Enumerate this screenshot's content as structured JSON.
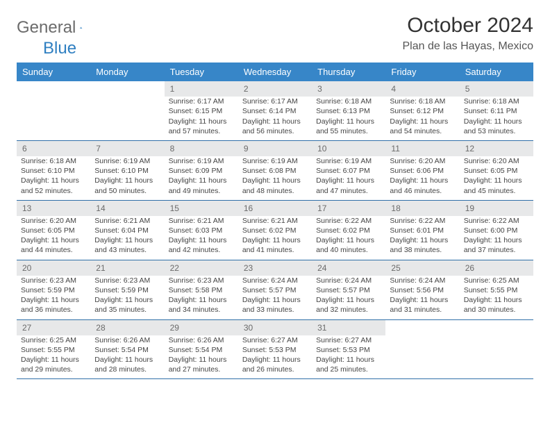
{
  "logo": {
    "word1": "General",
    "word2": "Blue"
  },
  "title": "October 2024",
  "subtitle": "Plan de las Hayas, Mexico",
  "colors": {
    "header_bg": "#3786c8",
    "header_fg": "#ffffff",
    "daynum_bg": "#e7e8e9",
    "daynum_fg": "#6a6a6a",
    "row_divider": "#2f6fa8",
    "logo_gray": "#6b6b6b",
    "logo_blue": "#2f7fc1"
  },
  "day_headers": [
    "Sunday",
    "Monday",
    "Tuesday",
    "Wednesday",
    "Thursday",
    "Friday",
    "Saturday"
  ],
  "weeks": [
    {
      "nums": [
        "",
        "",
        "1",
        "2",
        "3",
        "4",
        "5"
      ],
      "cells": [
        {
          "empty": true
        },
        {
          "empty": true
        },
        {
          "sunrise": "Sunrise: 6:17 AM",
          "sunset": "Sunset: 6:15 PM",
          "dl1": "Daylight: 11 hours",
          "dl2": "and 57 minutes."
        },
        {
          "sunrise": "Sunrise: 6:17 AM",
          "sunset": "Sunset: 6:14 PM",
          "dl1": "Daylight: 11 hours",
          "dl2": "and 56 minutes."
        },
        {
          "sunrise": "Sunrise: 6:18 AM",
          "sunset": "Sunset: 6:13 PM",
          "dl1": "Daylight: 11 hours",
          "dl2": "and 55 minutes."
        },
        {
          "sunrise": "Sunrise: 6:18 AM",
          "sunset": "Sunset: 6:12 PM",
          "dl1": "Daylight: 11 hours",
          "dl2": "and 54 minutes."
        },
        {
          "sunrise": "Sunrise: 6:18 AM",
          "sunset": "Sunset: 6:11 PM",
          "dl1": "Daylight: 11 hours",
          "dl2": "and 53 minutes."
        }
      ]
    },
    {
      "nums": [
        "6",
        "7",
        "8",
        "9",
        "10",
        "11",
        "12"
      ],
      "cells": [
        {
          "sunrise": "Sunrise: 6:18 AM",
          "sunset": "Sunset: 6:10 PM",
          "dl1": "Daylight: 11 hours",
          "dl2": "and 52 minutes."
        },
        {
          "sunrise": "Sunrise: 6:19 AM",
          "sunset": "Sunset: 6:10 PM",
          "dl1": "Daylight: 11 hours",
          "dl2": "and 50 minutes."
        },
        {
          "sunrise": "Sunrise: 6:19 AM",
          "sunset": "Sunset: 6:09 PM",
          "dl1": "Daylight: 11 hours",
          "dl2": "and 49 minutes."
        },
        {
          "sunrise": "Sunrise: 6:19 AM",
          "sunset": "Sunset: 6:08 PM",
          "dl1": "Daylight: 11 hours",
          "dl2": "and 48 minutes."
        },
        {
          "sunrise": "Sunrise: 6:19 AM",
          "sunset": "Sunset: 6:07 PM",
          "dl1": "Daylight: 11 hours",
          "dl2": "and 47 minutes."
        },
        {
          "sunrise": "Sunrise: 6:20 AM",
          "sunset": "Sunset: 6:06 PM",
          "dl1": "Daylight: 11 hours",
          "dl2": "and 46 minutes."
        },
        {
          "sunrise": "Sunrise: 6:20 AM",
          "sunset": "Sunset: 6:05 PM",
          "dl1": "Daylight: 11 hours",
          "dl2": "and 45 minutes."
        }
      ]
    },
    {
      "nums": [
        "13",
        "14",
        "15",
        "16",
        "17",
        "18",
        "19"
      ],
      "cells": [
        {
          "sunrise": "Sunrise: 6:20 AM",
          "sunset": "Sunset: 6:05 PM",
          "dl1": "Daylight: 11 hours",
          "dl2": "and 44 minutes."
        },
        {
          "sunrise": "Sunrise: 6:21 AM",
          "sunset": "Sunset: 6:04 PM",
          "dl1": "Daylight: 11 hours",
          "dl2": "and 43 minutes."
        },
        {
          "sunrise": "Sunrise: 6:21 AM",
          "sunset": "Sunset: 6:03 PM",
          "dl1": "Daylight: 11 hours",
          "dl2": "and 42 minutes."
        },
        {
          "sunrise": "Sunrise: 6:21 AM",
          "sunset": "Sunset: 6:02 PM",
          "dl1": "Daylight: 11 hours",
          "dl2": "and 41 minutes."
        },
        {
          "sunrise": "Sunrise: 6:22 AM",
          "sunset": "Sunset: 6:02 PM",
          "dl1": "Daylight: 11 hours",
          "dl2": "and 40 minutes."
        },
        {
          "sunrise": "Sunrise: 6:22 AM",
          "sunset": "Sunset: 6:01 PM",
          "dl1": "Daylight: 11 hours",
          "dl2": "and 38 minutes."
        },
        {
          "sunrise": "Sunrise: 6:22 AM",
          "sunset": "Sunset: 6:00 PM",
          "dl1": "Daylight: 11 hours",
          "dl2": "and 37 minutes."
        }
      ]
    },
    {
      "nums": [
        "20",
        "21",
        "22",
        "23",
        "24",
        "25",
        "26"
      ],
      "cells": [
        {
          "sunrise": "Sunrise: 6:23 AM",
          "sunset": "Sunset: 5:59 PM",
          "dl1": "Daylight: 11 hours",
          "dl2": "and 36 minutes."
        },
        {
          "sunrise": "Sunrise: 6:23 AM",
          "sunset": "Sunset: 5:59 PM",
          "dl1": "Daylight: 11 hours",
          "dl2": "and 35 minutes."
        },
        {
          "sunrise": "Sunrise: 6:23 AM",
          "sunset": "Sunset: 5:58 PM",
          "dl1": "Daylight: 11 hours",
          "dl2": "and 34 minutes."
        },
        {
          "sunrise": "Sunrise: 6:24 AM",
          "sunset": "Sunset: 5:57 PM",
          "dl1": "Daylight: 11 hours",
          "dl2": "and 33 minutes."
        },
        {
          "sunrise": "Sunrise: 6:24 AM",
          "sunset": "Sunset: 5:57 PM",
          "dl1": "Daylight: 11 hours",
          "dl2": "and 32 minutes."
        },
        {
          "sunrise": "Sunrise: 6:24 AM",
          "sunset": "Sunset: 5:56 PM",
          "dl1": "Daylight: 11 hours",
          "dl2": "and 31 minutes."
        },
        {
          "sunrise": "Sunrise: 6:25 AM",
          "sunset": "Sunset: 5:55 PM",
          "dl1": "Daylight: 11 hours",
          "dl2": "and 30 minutes."
        }
      ]
    },
    {
      "nums": [
        "27",
        "28",
        "29",
        "30",
        "31",
        "",
        ""
      ],
      "cells": [
        {
          "sunrise": "Sunrise: 6:25 AM",
          "sunset": "Sunset: 5:55 PM",
          "dl1": "Daylight: 11 hours",
          "dl2": "and 29 minutes."
        },
        {
          "sunrise": "Sunrise: 6:26 AM",
          "sunset": "Sunset: 5:54 PM",
          "dl1": "Daylight: 11 hours",
          "dl2": "and 28 minutes."
        },
        {
          "sunrise": "Sunrise: 6:26 AM",
          "sunset": "Sunset: 5:54 PM",
          "dl1": "Daylight: 11 hours",
          "dl2": "and 27 minutes."
        },
        {
          "sunrise": "Sunrise: 6:27 AM",
          "sunset": "Sunset: 5:53 PM",
          "dl1": "Daylight: 11 hours",
          "dl2": "and 26 minutes."
        },
        {
          "sunrise": "Sunrise: 6:27 AM",
          "sunset": "Sunset: 5:53 PM",
          "dl1": "Daylight: 11 hours",
          "dl2": "and 25 minutes."
        },
        {
          "empty": true
        },
        {
          "empty": true
        }
      ]
    }
  ]
}
